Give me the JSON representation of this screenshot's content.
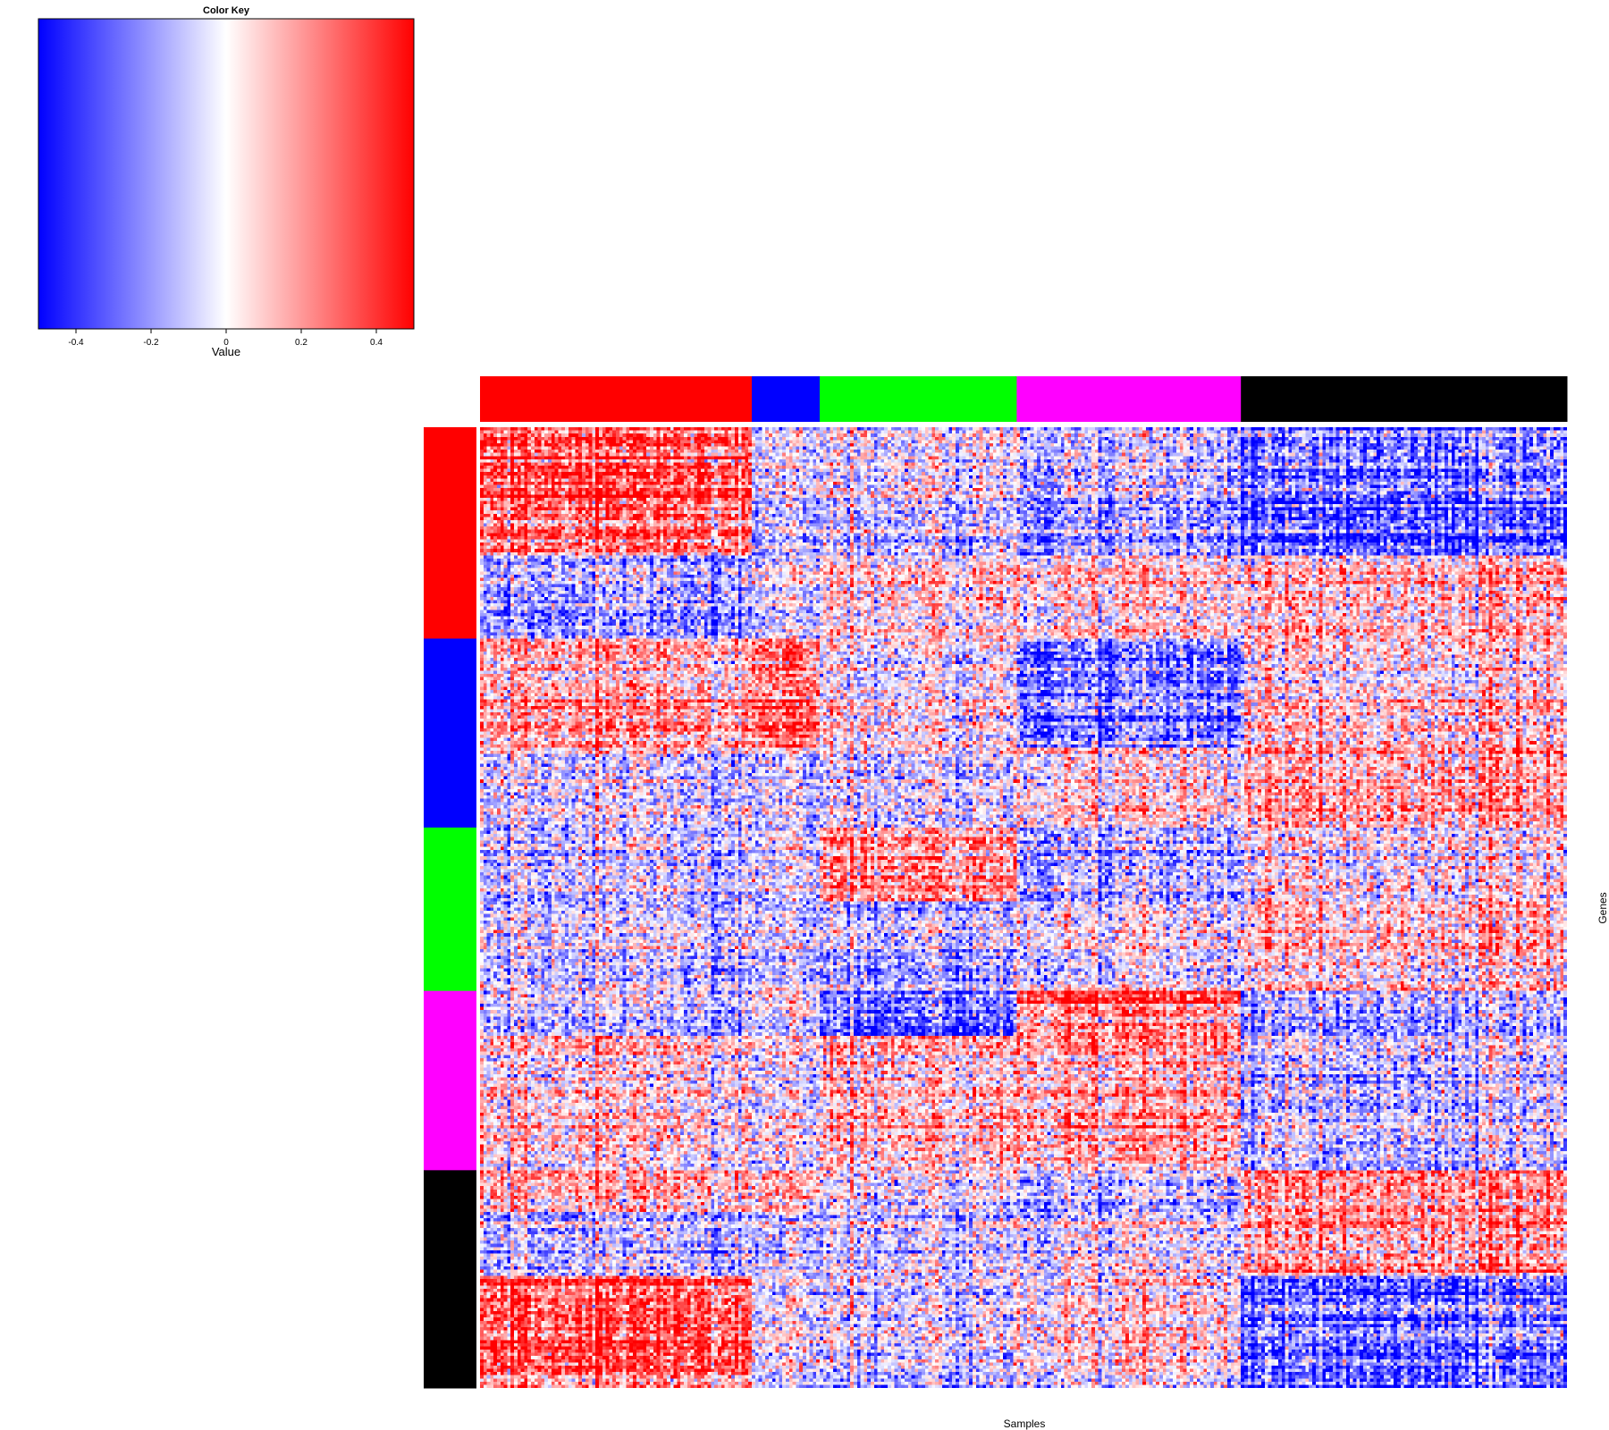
{
  "chart_data": {
    "type": "heatmap",
    "color_key": {
      "title": "Color Key",
      "xlabel": "Value",
      "range": [
        -0.5,
        0.5
      ],
      "ticks": [
        -0.4,
        -0.2,
        0,
        0.2,
        0.4
      ],
      "tick_labels": [
        "-0.4",
        "-0.2",
        "0",
        "0.2",
        "0.4"
      ],
      "colors": [
        "#0000ff",
        "#ffffff",
        "#ff0000"
      ]
    },
    "xlabel": "Samples",
    "ylabel": "Genes",
    "n_columns": 320,
    "n_rows": 300,
    "column_groups": [
      {
        "color": "#ff0000",
        "count": 80
      },
      {
        "color": "#0000ff",
        "count": 20
      },
      {
        "color": "#00ff00",
        "count": 58
      },
      {
        "color": "#ff00ff",
        "count": 66
      },
      {
        "color": "#000000",
        "count": 96
      }
    ],
    "row_groups": [
      {
        "color": "#ff0000",
        "count": 66
      },
      {
        "color": "#0000ff",
        "count": 59
      },
      {
        "color": "#00ff00",
        "count": 51
      },
      {
        "color": "#ff00ff",
        "count": 56
      },
      {
        "color": "#000000",
        "count": 68
      }
    ],
    "block_means": [
      [
        0.3,
        -0.08,
        -0.05,
        -0.15,
        -0.3
      ],
      [
        -0.15,
        0.0,
        0.1,
        0.1,
        0.15
      ],
      [
        0.15,
        0.28,
        0.0,
        -0.25,
        0.05
      ],
      [
        -0.05,
        -0.05,
        -0.05,
        0.05,
        0.15
      ],
      [
        -0.1,
        -0.05,
        0.2,
        -0.15,
        0.0
      ],
      [
        -0.05,
        -0.05,
        -0.1,
        0.0,
        0.1
      ],
      [
        -0.1,
        0.0,
        -0.3,
        0.3,
        -0.15
      ],
      [
        0.05,
        0.0,
        0.1,
        0.15,
        -0.1
      ],
      [
        0.1,
        0.1,
        -0.05,
        -0.15,
        0.15
      ],
      [
        -0.1,
        -0.05,
        -0.05,
        0.0,
        0.2
      ],
      [
        0.3,
        0.0,
        -0.05,
        0.05,
        -0.25
      ]
    ],
    "row_bands": [
      0,
      40,
      66,
      100,
      125,
      148,
      176,
      190,
      232,
      245,
      265,
      300
    ]
  }
}
